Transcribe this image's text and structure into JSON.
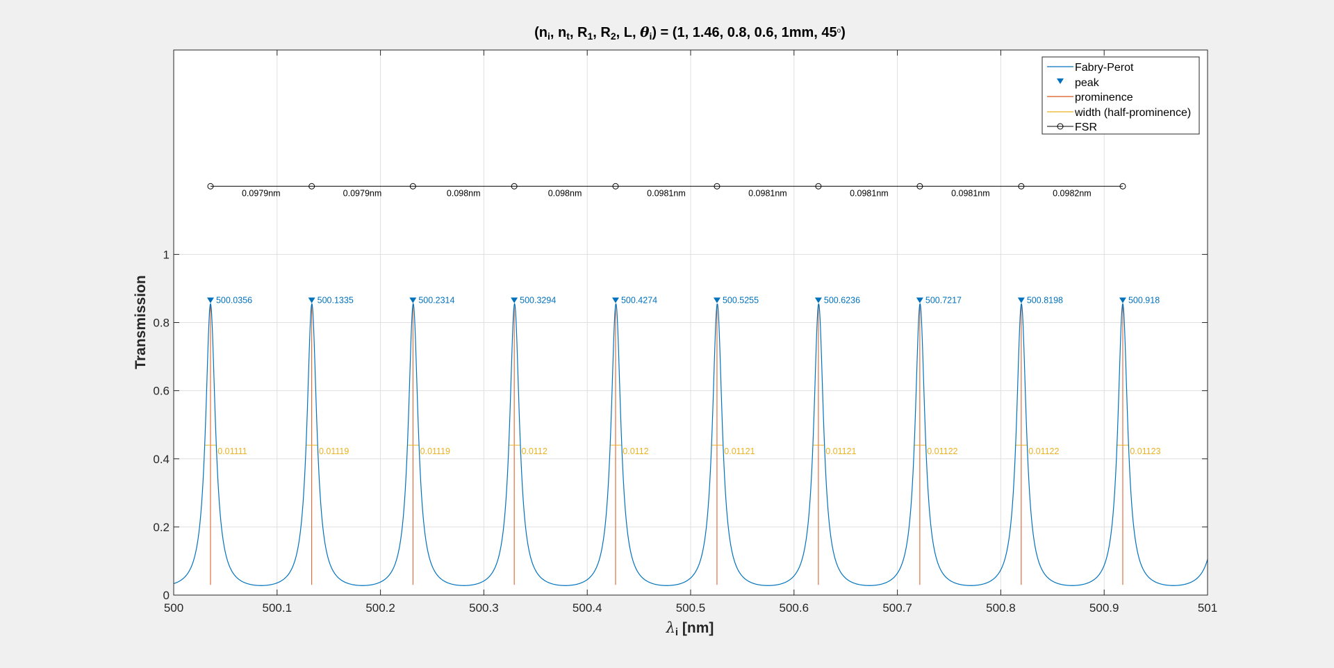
{
  "chart_data": {
    "type": "line",
    "title_parts": {
      "open": "(n",
      "s_i1": "i",
      "c1": ", n",
      "s_t": "t",
      "c2": ", R",
      "s_1": "1",
      "c3": ", R",
      "s_2": "2",
      "c4": ", L, ",
      "theta": "θ",
      "s_i2": "i",
      "c5": ") = (1, 1.46, 0.8, 0.6, 1mm, 45",
      "deg": "o",
      "close": ")"
    },
    "xlabel": {
      "lambda": "λ",
      "sub": "i",
      "rest": " [nm]"
    },
    "ylabel": "Transmission",
    "xlim": [
      500,
      501
    ],
    "ylim": [
      0,
      1.6
    ],
    "xticks": [
      500,
      500.1,
      500.2,
      500.3,
      500.4,
      500.5,
      500.6,
      500.7,
      500.8,
      500.9,
      501
    ],
    "xtick_labels": [
      "500",
      "500.1",
      "500.2",
      "500.3",
      "500.4",
      "500.5",
      "500.6",
      "500.7",
      "500.8",
      "500.9",
      "501"
    ],
    "yticks": [
      0,
      0.2,
      0.4,
      0.6,
      0.8,
      1
    ],
    "ytick_labels": [
      "0",
      "0.2",
      "0.4",
      "0.6",
      "0.8",
      "1"
    ],
    "grid": true,
    "legend_position": "top-right",
    "legend": [
      "Fabry-Perot",
      "peak",
      "prominence",
      "width (half-prominence)",
      "FSR"
    ],
    "colors": {
      "fabry_perot": "#0072bd",
      "peak": "#0072bd",
      "prominence": "#d95319",
      "width": "#edb120",
      "fsr": "#000000"
    },
    "curve": {
      "name": "Fabry-Perot",
      "peak_value": 0.855,
      "min_value": 0.028
    },
    "peaks": [
      500.0356,
      500.1335,
      500.2314,
      500.3294,
      500.4274,
      500.5255,
      500.6236,
      500.7217,
      500.8198,
      500.918
    ],
    "peak_labels": [
      "500.0356",
      "500.1335",
      "500.2314",
      "500.3294",
      "500.4274",
      "500.5255",
      "500.6236",
      "500.7217",
      "500.8198",
      "500.918"
    ],
    "prominence_base": 0.03,
    "widths": [
      0.01111,
      0.01119,
      0.01119,
      0.0112,
      0.0112,
      0.01121,
      0.01121,
      0.01122,
      0.01122,
      0.01123
    ],
    "width_labels": [
      "0.01111",
      "0.01119",
      "0.01119",
      "0.0112",
      "0.0112",
      "0.01121",
      "0.01121",
      "0.01122",
      "0.01122",
      "0.01123"
    ],
    "width_level": 0.44,
    "fsr_level": 1.2,
    "fsr_labels": [
      "0.0979nm",
      "0.0979nm",
      "0.098nm",
      "0.098nm",
      "0.0981nm",
      "0.0981nm",
      "0.0981nm",
      "0.0981nm",
      "0.0982nm"
    ]
  }
}
